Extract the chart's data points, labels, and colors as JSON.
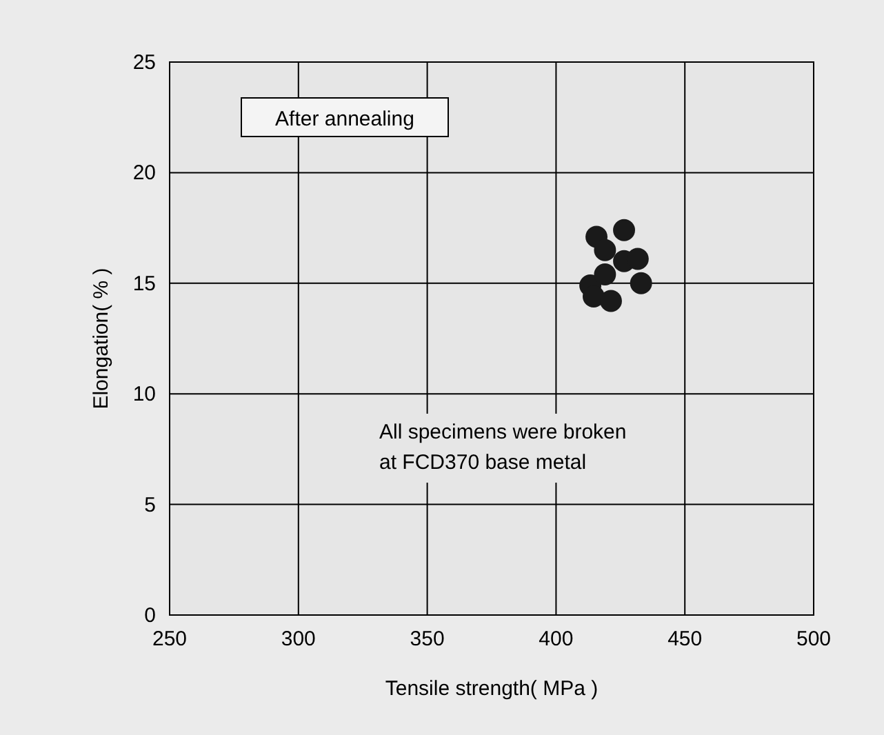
{
  "chart_data": {
    "type": "scatter",
    "xlabel": "Tensile strength( MPa )",
    "ylabel": "Elongation( % )",
    "x": [
      415.7,
      426.4,
      419,
      426.4,
      431.7,
      433,
      413.3,
      414.6,
      421.3,
      419
    ],
    "values": [
      17.1,
      17.4,
      16.5,
      16.0,
      16.1,
      15.0,
      14.9,
      14.4,
      14.2,
      15.4
    ],
    "color": "#1a1a1a",
    "marker": "circle",
    "xlim": [
      250,
      500
    ],
    "xticks": [
      250,
      300,
      350,
      400,
      450,
      500
    ],
    "ylim": [
      0,
      25
    ],
    "yticks": [
      0,
      5,
      10,
      15,
      20,
      25
    ],
    "grid": true,
    "annotations": [
      {
        "text": "After annealing"
      },
      {
        "text": "All specimens were broken\nat FCD370 base metal"
      }
    ]
  }
}
